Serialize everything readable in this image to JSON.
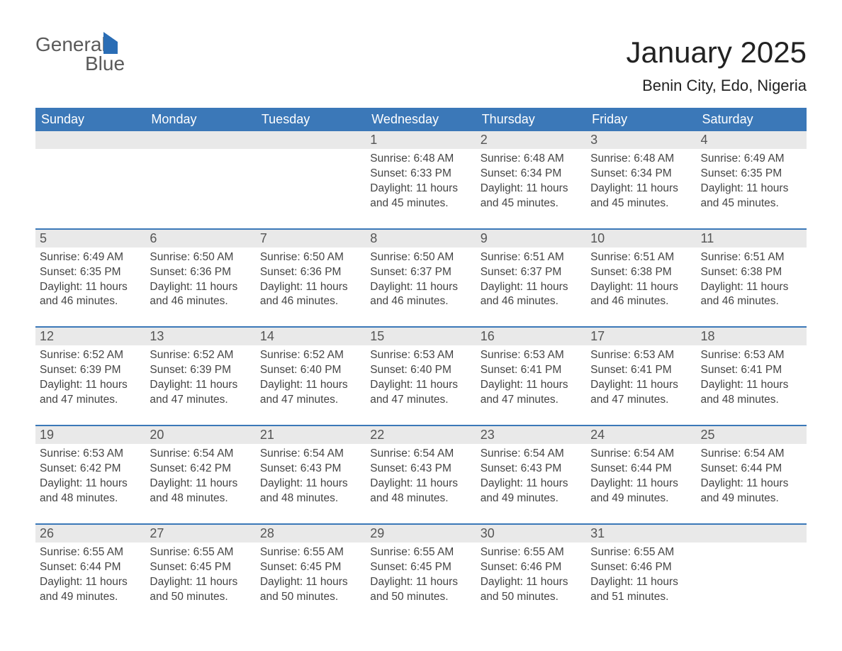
{
  "brand": {
    "word1": "General",
    "word2": "Blue"
  },
  "title": "January 2025",
  "subtitle": "Benin City, Edo, Nigeria",
  "colors": {
    "header_bg": "#3b78b8",
    "header_text": "#ffffff",
    "daynum_bg": "#e9e9e9",
    "row_divider": "#3b78b8",
    "body_text": "#444444",
    "brand_gray": "#5a5a5a",
    "brand_blue": "#2a6db5",
    "page_bg": "#ffffff"
  },
  "typography": {
    "title_fontsize": 42,
    "subtitle_fontsize": 22,
    "header_fontsize": 18,
    "daynum_fontsize": 18,
    "body_fontsize": 15.5,
    "font_family": "Arial"
  },
  "columns": [
    "Sunday",
    "Monday",
    "Tuesday",
    "Wednesday",
    "Thursday",
    "Friday",
    "Saturday"
  ],
  "weeks": [
    [
      null,
      null,
      null,
      {
        "day": "1",
        "sunrise": "6:48 AM",
        "sunset": "6:33 PM",
        "daylight": "11 hours and 45 minutes."
      },
      {
        "day": "2",
        "sunrise": "6:48 AM",
        "sunset": "6:34 PM",
        "daylight": "11 hours and 45 minutes."
      },
      {
        "day": "3",
        "sunrise": "6:48 AM",
        "sunset": "6:34 PM",
        "daylight": "11 hours and 45 minutes."
      },
      {
        "day": "4",
        "sunrise": "6:49 AM",
        "sunset": "6:35 PM",
        "daylight": "11 hours and 45 minutes."
      }
    ],
    [
      {
        "day": "5",
        "sunrise": "6:49 AM",
        "sunset": "6:35 PM",
        "daylight": "11 hours and 46 minutes."
      },
      {
        "day": "6",
        "sunrise": "6:50 AM",
        "sunset": "6:36 PM",
        "daylight": "11 hours and 46 minutes."
      },
      {
        "day": "7",
        "sunrise": "6:50 AM",
        "sunset": "6:36 PM",
        "daylight": "11 hours and 46 minutes."
      },
      {
        "day": "8",
        "sunrise": "6:50 AM",
        "sunset": "6:37 PM",
        "daylight": "11 hours and 46 minutes."
      },
      {
        "day": "9",
        "sunrise": "6:51 AM",
        "sunset": "6:37 PM",
        "daylight": "11 hours and 46 minutes."
      },
      {
        "day": "10",
        "sunrise": "6:51 AM",
        "sunset": "6:38 PM",
        "daylight": "11 hours and 46 minutes."
      },
      {
        "day": "11",
        "sunrise": "6:51 AM",
        "sunset": "6:38 PM",
        "daylight": "11 hours and 46 minutes."
      }
    ],
    [
      {
        "day": "12",
        "sunrise": "6:52 AM",
        "sunset": "6:39 PM",
        "daylight": "11 hours and 47 minutes."
      },
      {
        "day": "13",
        "sunrise": "6:52 AM",
        "sunset": "6:39 PM",
        "daylight": "11 hours and 47 minutes."
      },
      {
        "day": "14",
        "sunrise": "6:52 AM",
        "sunset": "6:40 PM",
        "daylight": "11 hours and 47 minutes."
      },
      {
        "day": "15",
        "sunrise": "6:53 AM",
        "sunset": "6:40 PM",
        "daylight": "11 hours and 47 minutes."
      },
      {
        "day": "16",
        "sunrise": "6:53 AM",
        "sunset": "6:41 PM",
        "daylight": "11 hours and 47 minutes."
      },
      {
        "day": "17",
        "sunrise": "6:53 AM",
        "sunset": "6:41 PM",
        "daylight": "11 hours and 47 minutes."
      },
      {
        "day": "18",
        "sunrise": "6:53 AM",
        "sunset": "6:41 PM",
        "daylight": "11 hours and 48 minutes."
      }
    ],
    [
      {
        "day": "19",
        "sunrise": "6:53 AM",
        "sunset": "6:42 PM",
        "daylight": "11 hours and 48 minutes."
      },
      {
        "day": "20",
        "sunrise": "6:54 AM",
        "sunset": "6:42 PM",
        "daylight": "11 hours and 48 minutes."
      },
      {
        "day": "21",
        "sunrise": "6:54 AM",
        "sunset": "6:43 PM",
        "daylight": "11 hours and 48 minutes."
      },
      {
        "day": "22",
        "sunrise": "6:54 AM",
        "sunset": "6:43 PM",
        "daylight": "11 hours and 48 minutes."
      },
      {
        "day": "23",
        "sunrise": "6:54 AM",
        "sunset": "6:43 PM",
        "daylight": "11 hours and 49 minutes."
      },
      {
        "day": "24",
        "sunrise": "6:54 AM",
        "sunset": "6:44 PM",
        "daylight": "11 hours and 49 minutes."
      },
      {
        "day": "25",
        "sunrise": "6:54 AM",
        "sunset": "6:44 PM",
        "daylight": "11 hours and 49 minutes."
      }
    ],
    [
      {
        "day": "26",
        "sunrise": "6:55 AM",
        "sunset": "6:44 PM",
        "daylight": "11 hours and 49 minutes."
      },
      {
        "day": "27",
        "sunrise": "6:55 AM",
        "sunset": "6:45 PM",
        "daylight": "11 hours and 50 minutes."
      },
      {
        "day": "28",
        "sunrise": "6:55 AM",
        "sunset": "6:45 PM",
        "daylight": "11 hours and 50 minutes."
      },
      {
        "day": "29",
        "sunrise": "6:55 AM",
        "sunset": "6:45 PM",
        "daylight": "11 hours and 50 minutes."
      },
      {
        "day": "30",
        "sunrise": "6:55 AM",
        "sunset": "6:46 PM",
        "daylight": "11 hours and 50 minutes."
      },
      {
        "day": "31",
        "sunrise": "6:55 AM",
        "sunset": "6:46 PM",
        "daylight": "11 hours and 51 minutes."
      },
      null
    ]
  ],
  "labels": {
    "sunrise_prefix": "Sunrise: ",
    "sunset_prefix": "Sunset: ",
    "daylight_prefix": "Daylight: "
  }
}
